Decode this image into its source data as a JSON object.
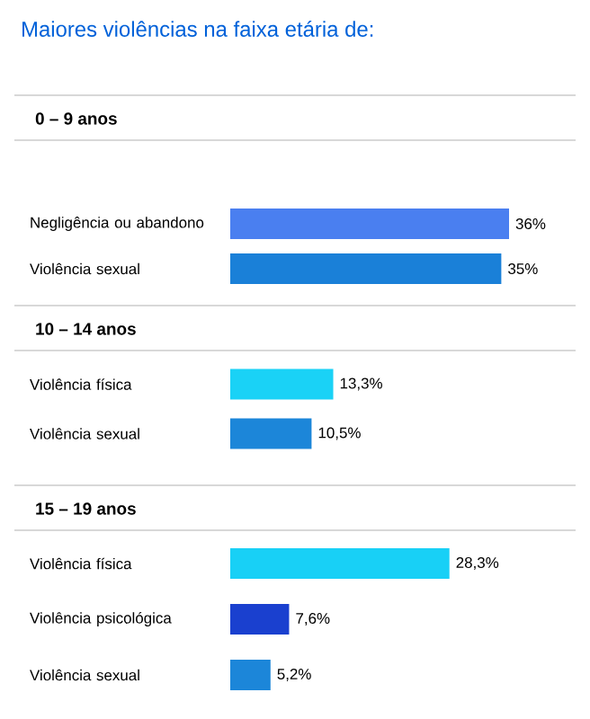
{
  "chart_data": [
    {
      "type": "bar",
      "orientation": "horizontal",
      "title": "0 – 9 anos",
      "annotations": [
        "Maiores violências na faixa etária de:"
      ],
      "categories": [
        "Negligência ou abandono",
        "Violência sexual"
      ],
      "values": [
        36,
        35
      ],
      "value_labels": [
        "36%",
        "35%"
      ],
      "colors": [
        "#4a7ff0",
        "#1a80d8"
      ]
    },
    {
      "type": "bar",
      "orientation": "horizontal",
      "title": "10 – 14 anos",
      "categories": [
        "Violência física",
        "Violência sexual"
      ],
      "values": [
        13.3,
        10.5
      ],
      "value_labels": [
        "13,3%",
        "10,5%"
      ],
      "colors": [
        "#1ad2f6",
        "#1c86d9"
      ]
    },
    {
      "type": "bar",
      "orientation": "horizontal",
      "title": "15 – 19 anos",
      "categories": [
        "Violência física",
        "Violência psicológica",
        "Violência sexual"
      ],
      "values": [
        28.3,
        7.6,
        5.2
      ],
      "value_labels": [
        "28,3%",
        "7,6%",
        "5,2%"
      ],
      "colors": [
        "#18d0f6",
        "#1a40cf",
        "#1c86d9"
      ]
    }
  ]
}
